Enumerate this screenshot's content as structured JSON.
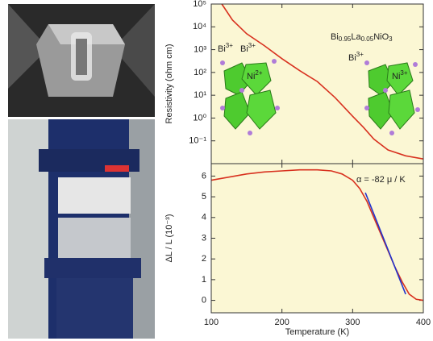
{
  "chart_data": [
    {
      "type": "line",
      "log_y": true,
      "background": "#fbf7d4",
      "ylabel": "Resistivity (ohm cm)",
      "xlim": [
        100,
        400
      ],
      "xticks": [
        100,
        200,
        300,
        400
      ],
      "show_xtick_labels": false,
      "ylim": [
        0.01,
        100000
      ],
      "yticks": [
        {
          "value": 0.1,
          "label": "10⁻¹"
        },
        {
          "value": 1,
          "label": "10⁰"
        },
        {
          "value": 10,
          "label": "10¹"
        },
        {
          "value": 100,
          "label": "10²"
        },
        {
          "value": 1000,
          "label": "10³"
        },
        {
          "value": 10000,
          "label": "10⁴"
        },
        {
          "value": 100000,
          "label": "10⁵"
        }
      ],
      "compound": [
        "Bi",
        "0.95",
        "La",
        "0.05",
        "NiO",
        "3"
      ],
      "ions": [
        {
          "symbol": "Bi",
          "charge": "3+"
        },
        {
          "symbol": "Bi",
          "charge": "3+"
        },
        {
          "symbol": "Ni",
          "charge": "2+"
        },
        {
          "symbol": "Bi",
          "charge": "3+"
        },
        {
          "symbol": "Ni",
          "charge": "3+"
        }
      ],
      "series": [
        {
          "color": "#d8311f",
          "x": [
            115,
            130,
            150,
            175,
            200,
            225,
            250,
            275,
            300,
            315,
            330,
            350,
            375,
            400
          ],
          "values": [
            100000,
            20000,
            5000,
            1500,
            400,
            120,
            40,
            8,
            1.2,
            0.4,
            0.12,
            0.04,
            0.022,
            0.016
          ]
        }
      ]
    },
    {
      "type": "line",
      "log_y": false,
      "background": "#fbf7d4",
      "ylabel": "ΔL / L (10⁻³)",
      "xlabel": "Temperature (K)",
      "xlim": [
        100,
        400
      ],
      "xticks": [
        100,
        200,
        300,
        400
      ],
      "show_xtick_labels": true,
      "ylim": [
        -0.6,
        6.6
      ],
      "yticks": [
        0,
        1,
        2,
        3,
        4,
        5,
        6
      ],
      "annotation": "α = -82 μ / K",
      "series": [
        {
          "color": "#d8311f",
          "x": [
            100,
            125,
            150,
            175,
            200,
            225,
            250,
            270,
            285,
            300,
            310,
            320,
            330,
            340,
            350,
            360,
            370,
            380,
            390,
            400
          ],
          "values": [
            5.8,
            5.95,
            6.1,
            6.2,
            6.25,
            6.3,
            6.3,
            6.25,
            6.1,
            5.8,
            5.4,
            4.8,
            4.0,
            3.2,
            2.4,
            1.6,
            0.9,
            0.3,
            0.05,
            0.0
          ]
        },
        {
          "color": "#2233cc",
          "x": [
            318,
            375
          ],
          "values": [
            5.2,
            0.3
          ]
        }
      ]
    }
  ]
}
